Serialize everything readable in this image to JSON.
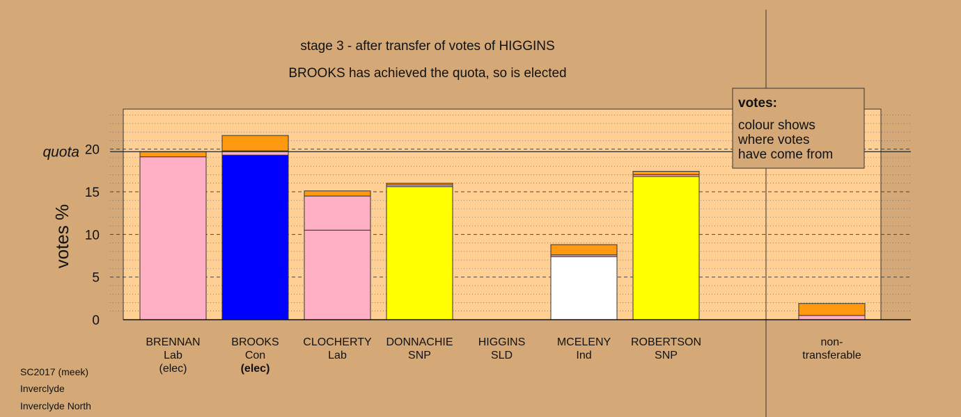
{
  "chart_data": {
    "type": "bar",
    "stacked": true,
    "title": "stage 3 - after transfer of votes of HIGGINS",
    "subtitle": "BROOKS has achieved the quota, so is elected",
    "ylabel": "votes %",
    "ylim": [
      0,
      25
    ],
    "yticks": [
      0,
      5,
      10,
      15,
      20
    ],
    "quota": 19.7,
    "quota_label": "quota",
    "grid": true,
    "legend": {
      "placement": "top-right",
      "title": "votes:",
      "lines": [
        "colour shows",
        "where votes",
        "have come from"
      ]
    },
    "colors": {
      "Lab": "#ffb0c4",
      "Con": "#0000ff",
      "SNP": "#ffff00",
      "Ind": "#ffffff",
      "SLD": "#ff9a10",
      "plot_bg": "#ffcf93",
      "page_bg": "#d4a977"
    },
    "categories": [
      {
        "name": "BRENNAN",
        "party": "Lab",
        "note": "(elec)",
        "note_bold": false,
        "segments": [
          {
            "source": "Lab",
            "value": 19.1
          },
          {
            "source": "SLD",
            "value": 0.6
          }
        ]
      },
      {
        "name": "BROOKS",
        "party": "Con",
        "note": "(elec)",
        "note_bold": true,
        "segments": [
          {
            "source": "Con",
            "value": 19.3
          },
          {
            "source": "Lab",
            "value": 0.5
          },
          {
            "source": "SLD",
            "value": 1.8
          }
        ]
      },
      {
        "name": "CLOCHERTY",
        "party": "Lab",
        "note": "",
        "note_bold": false,
        "segments": [
          {
            "source": "Lab",
            "value": 10.5
          },
          {
            "source": "Lab",
            "value": 4.0
          },
          {
            "source": "SLD",
            "value": 0.6
          }
        ]
      },
      {
        "name": "DONNACHIE",
        "party": "SNP",
        "note": "",
        "note_bold": false,
        "segments": [
          {
            "source": "SNP",
            "value": 15.6
          },
          {
            "source": "Lab",
            "value": 0.2
          },
          {
            "source": "SLD",
            "value": 0.2
          }
        ]
      },
      {
        "name": "HIGGINS",
        "party": "SLD",
        "note": "",
        "note_bold": false,
        "segments": []
      },
      {
        "name": "MCELENY",
        "party": "Ind",
        "note": "",
        "note_bold": false,
        "segments": [
          {
            "source": "Ind",
            "value": 7.4
          },
          {
            "source": "Lab",
            "value": 0.2
          },
          {
            "source": "SLD",
            "value": 1.2
          }
        ]
      },
      {
        "name": "ROBERTSON",
        "party": "SNP",
        "note": "",
        "note_bold": false,
        "segments": [
          {
            "source": "SNP",
            "value": 16.8
          },
          {
            "source": "Lab",
            "value": 0.2
          },
          {
            "source": "SLD",
            "value": 0.4
          }
        ]
      }
    ],
    "non_transferable": {
      "label_lines": [
        "non-",
        "transferable"
      ],
      "segments": [
        {
          "source": "Lab",
          "value": 0.5
        },
        {
          "source": "SLD",
          "value": 1.4
        }
      ]
    }
  },
  "footer": {
    "lines": [
      "SC2017 (meek)",
      "Inverclyde",
      "Inverclyde North"
    ]
  }
}
